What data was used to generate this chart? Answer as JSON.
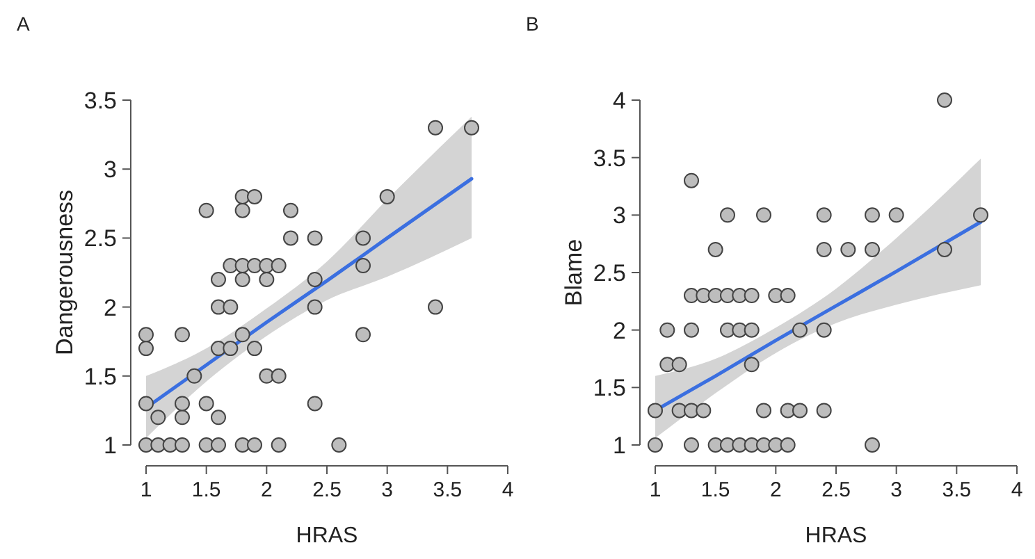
{
  "chart_data": [
    {
      "type": "scatter",
      "title": "A",
      "xlabel": "HRAS",
      "ylabel": "Dangerousness",
      "xlim": [
        1,
        4
      ],
      "ylim": [
        1,
        3.5
      ],
      "xticks": [
        1,
        1.5,
        2,
        2.5,
        3,
        3.5,
        4
      ],
      "yticks": [
        1,
        1.5,
        2,
        2.5,
        3,
        3.5
      ],
      "series": [
        {
          "marker": "circle",
          "color": "#bdbdbd",
          "x": [
            1,
            1.1,
            1.2,
            1.3,
            1.5,
            1.6,
            1.8,
            1.9,
            2.1,
            2.6,
            1.1,
            1.3,
            1.6,
            1.0,
            1.3,
            1.5,
            2.4,
            1.4,
            2.0,
            2.1,
            1.0,
            1.6,
            1.7,
            1.9,
            1.0,
            1.3,
            1.8,
            2.8,
            1.6,
            1.7,
            2.4,
            3.4,
            1.6,
            1.8,
            2.0,
            2.4,
            1.7,
            1.8,
            1.9,
            2.0,
            2.1,
            2.8,
            2.2,
            2.4,
            2.8,
            1.5,
            1.8,
            2.2,
            1.8,
            1.9,
            3.0,
            3.4,
            3.7
          ],
          "values": [
            1,
            1,
            1,
            1,
            1,
            1,
            1,
            1,
            1,
            1,
            1.2,
            1.2,
            1.2,
            1.3,
            1.3,
            1.3,
            1.3,
            1.5,
            1.5,
            1.5,
            1.7,
            1.7,
            1.7,
            1.7,
            1.8,
            1.8,
            1.8,
            1.8,
            2,
            2,
            2,
            2,
            2.2,
            2.2,
            2.2,
            2.2,
            2.3,
            2.3,
            2.3,
            2.3,
            2.3,
            2.3,
            2.5,
            2.5,
            2.5,
            2.7,
            2.7,
            2.7,
            2.8,
            2.8,
            2.8,
            3.3,
            3.3
          ]
        },
        {
          "type": "line",
          "color": "#3b6fe0",
          "x": [
            1,
            1.5,
            2,
            2.5,
            3,
            3.7
          ],
          "values": [
            1.27,
            1.58,
            1.89,
            2.19,
            2.5,
            2.93
          ],
          "lower": [
            1.05,
            1.46,
            1.79,
            2.05,
            2.22,
            2.5
          ],
          "upper": [
            1.5,
            1.7,
            1.99,
            2.33,
            2.78,
            3.38
          ]
        }
      ]
    },
    {
      "type": "scatter",
      "title": "B",
      "xlabel": "HRAS",
      "ylabel": "Blame",
      "xlim": [
        1,
        4
      ],
      "ylim": [
        1,
        4
      ],
      "xticks": [
        1,
        1.5,
        2,
        2.5,
        3,
        3.5,
        4
      ],
      "yticks": [
        1,
        1.5,
        2,
        2.5,
        3,
        3.5,
        4
      ],
      "series": [
        {
          "marker": "circle",
          "color": "#bdbdbd",
          "x": [
            1.0,
            1.3,
            1.5,
            1.6,
            1.7,
            1.8,
            1.9,
            2.0,
            2.1,
            2.8,
            1.0,
            1.2,
            1.3,
            1.4,
            1.9,
            2.1,
            2.2,
            2.4,
            1.1,
            1.2,
            1.8,
            1.1,
            1.3,
            1.6,
            1.7,
            1.8,
            2.2,
            2.4,
            1.3,
            1.4,
            1.5,
            1.6,
            1.7,
            1.8,
            2.0,
            2.1,
            1.5,
            2.4,
            2.6,
            2.8,
            3.4,
            1.6,
            1.9,
            2.4,
            2.8,
            3.0,
            3.7,
            1.3,
            3.4
          ],
          "values": [
            1,
            1,
            1,
            1,
            1,
            1,
            1,
            1,
            1,
            1,
            1.3,
            1.3,
            1.3,
            1.3,
            1.3,
            1.3,
            1.3,
            1.3,
            1.7,
            1.7,
            1.7,
            2,
            2,
            2,
            2,
            2,
            2,
            2,
            2.3,
            2.3,
            2.3,
            2.3,
            2.3,
            2.3,
            2.3,
            2.3,
            2.7,
            2.7,
            2.7,
            2.7,
            2.7,
            3,
            3,
            3,
            3,
            3,
            3,
            3.3,
            4
          ]
        },
        {
          "type": "line",
          "color": "#3b6fe0",
          "x": [
            1,
            1.5,
            2,
            2.5,
            3,
            3.7
          ],
          "values": [
            1.3,
            1.6,
            1.91,
            2.21,
            2.51,
            2.94
          ],
          "lower": [
            1.06,
            1.45,
            1.8,
            2.06,
            2.22,
            2.39
          ],
          "upper": [
            1.6,
            1.75,
            2.02,
            2.36,
            2.8,
            3.49
          ]
        }
      ]
    }
  ]
}
